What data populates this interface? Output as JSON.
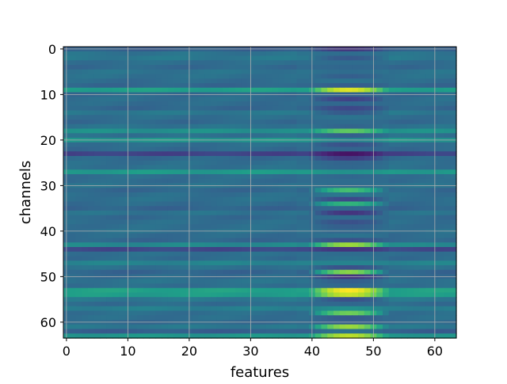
{
  "chart_data": {
    "type": "heatmap",
    "colormap": "viridis",
    "colormap_stops": [
      "#440154",
      "#482878",
      "#3e4989",
      "#31688e",
      "#26828e",
      "#1f9e89",
      "#35b779",
      "#6ece58",
      "#b5de2b",
      "#fde725"
    ],
    "xlabel": "features",
    "ylabel": "channels",
    "x_ticks": [
      0,
      10,
      20,
      30,
      40,
      50,
      60
    ],
    "y_ticks": [
      0,
      10,
      20,
      30,
      40,
      50,
      60
    ],
    "xlim": [
      -0.5,
      63.5
    ],
    "ylim": [
      63.5,
      -0.5
    ],
    "y_inverted": true,
    "grid": true,
    "n_rows": 64,
    "n_cols": 64,
    "active_band_cols": [
      39,
      52
    ],
    "base_levels": [
      0.3,
      0.38,
      0.4,
      0.36,
      0.34,
      0.38,
      0.37,
      0.35,
      0.33,
      0.56,
      0.34,
      0.36,
      0.35,
      0.33,
      0.4,
      0.36,
      0.34,
      0.38,
      0.5,
      0.37,
      0.52,
      0.36,
      0.34,
      0.2,
      0.34,
      0.36,
      0.37,
      0.54,
      0.36,
      0.35,
      0.38,
      0.33,
      0.36,
      0.37,
      0.35,
      0.32,
      0.38,
      0.34,
      0.36,
      0.36,
      0.37,
      0.35,
      0.33,
      0.47,
      0.22,
      0.36,
      0.35,
      0.45,
      0.37,
      0.32,
      0.35,
      0.38,
      0.36,
      0.57,
      0.55,
      0.4,
      0.35,
      0.43,
      0.36,
      0.36,
      0.34,
      0.4,
      0.3,
      0.52
    ],
    "band_levels": [
      0.15,
      0.35,
      0.28,
      0.35,
      0.33,
      0.35,
      0.3,
      0.38,
      0.3,
      0.95,
      0.32,
      0.2,
      0.33,
      0.22,
      0.28,
      0.38,
      0.35,
      0.32,
      0.75,
      0.3,
      0.45,
      0.25,
      0.32,
      0.05,
      0.18,
      0.32,
      0.33,
      0.5,
      0.33,
      0.35,
      0.35,
      0.7,
      0.4,
      0.22,
      0.65,
      0.33,
      0.15,
      0.35,
      0.25,
      0.3,
      0.33,
      0.38,
      0.25,
      0.85,
      0.15,
      0.35,
      0.38,
      0.45,
      0.25,
      0.82,
      0.15,
      0.3,
      0.33,
      1.0,
      0.92,
      0.25,
      0.33,
      0.5,
      0.78,
      0.28,
      0.3,
      0.85,
      0.38,
      0.9
    ]
  }
}
